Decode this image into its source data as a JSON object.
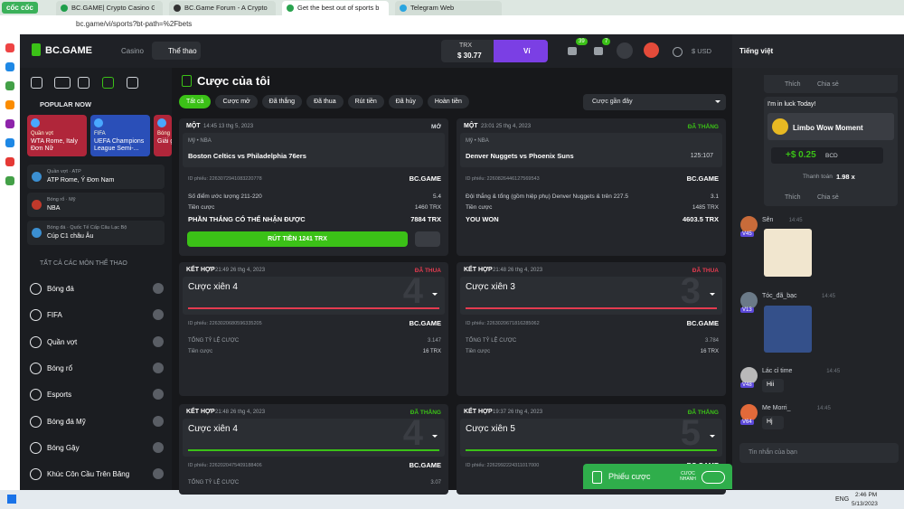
{
  "browser": {
    "brand": "cốc cốc",
    "tabs": [
      "BC.GAME| Crypto Casino Ga",
      "BC.Game Forum - A Cryptoc",
      "Get the best out of sports b",
      "Telegram Web"
    ],
    "url": "bc.game/vi/sports?bt-path=%2Fbets"
  },
  "header": {
    "logo": "BC.GAME",
    "nav": [
      "Casino",
      "Thể thao"
    ],
    "currency": "TRX",
    "balance": "$ 30.77",
    "wallet": "Ví",
    "badges": [
      "39",
      "7"
    ],
    "fiat": "$ USD",
    "language": "Tiếng việt"
  },
  "sidebar": {
    "popular_title": "POPULAR NOW",
    "cards": [
      {
        "sub": "Quần vợt",
        "title": "WTA Rome, Italy Đơn Nữ"
      },
      {
        "sub": "FIFA",
        "title": "UEFA Champions League Semi-..."
      },
      {
        "sub": "Bóng",
        "title": "Giải gia"
      }
    ],
    "leagues": [
      {
        "sub": "Quần vợt · ATP",
        "title": "ATP Rome, Ý Đơn Nam"
      },
      {
        "sub": "Bóng rổ · Mỹ",
        "title": "NBA"
      },
      {
        "sub": "Bóng đá · Quốc Tế Cấp Câu Lạc Bộ",
        "title": "Cúp C1 châu Âu"
      }
    ],
    "all_title": "TẤT CẢ CÁC MÔN THỂ THAO",
    "sports": [
      "Bóng đá",
      "FIFA",
      "Quần vợt",
      "Bóng rổ",
      "Esports",
      "Bóng đá Mỹ",
      "Bóng Gậy",
      "Khúc Côn Cầu Trên Băng"
    ]
  },
  "main": {
    "title": "Cược của tôi",
    "filters": [
      "Tất cả",
      "Cược mở",
      "Đã thắng",
      "Đã thua",
      "Rút tiền",
      "Đã hủy",
      "Hoàn tiền"
    ],
    "sort": "Cược gần đây",
    "bets": [
      {
        "type": "MỘT",
        "time": "14:45 13 thg 5, 2023",
        "status": "MỞ",
        "color": "#d7dbe0",
        "league": "Mỹ • NBA",
        "match": "Boston Celtics vs Philadelphia 76ers",
        "id": "ID phiếu: 2263072941083220778",
        "brand": "BC.GAME",
        "selection": "Số điểm ước lượng 211-220",
        "odds": "5.4",
        "stake_label": "Tiền cược",
        "stake": "1460 TRX",
        "result_label": "PHẦN THẮNG CÓ THỂ NHẬN ĐƯỢC",
        "result": "7884 TRX",
        "cashout": "RÚT TIỀN 1241 TRX"
      },
      {
        "type": "MỘT",
        "time": "23:01 25 thg 4, 2023",
        "status": "ĐÃ THẮNG",
        "color": "#3bc117",
        "league": "Mỹ • NBA",
        "match": "Denver Nuggets vs Phoenix Suns",
        "score": "125:107",
        "id": "ID phiếu: 2260826446127569543",
        "brand": "BC.GAME",
        "selection": "Đội thắng & tổng (gồm hiệp phụ) Denver Nuggets & trên 227.5",
        "odds": "3.1",
        "stake_label": "Tiền cược",
        "stake": "1485 TRX",
        "result_label": "YOU WON",
        "result": "4603.5 TRX"
      },
      {
        "type": "KẾT HỢP",
        "time": "21:49 26 thg 4, 2023",
        "status": "ĐÃ THUA",
        "color": "#e43b4f",
        "name": "Cược xiên 4",
        "count": "4",
        "id": "ID phiếu: 2263020680596335205",
        "brand": "BC.GAME",
        "total_label": "TỔNG TỶ LỆ CƯỢC",
        "total": "3.147",
        "stake_label": "Tiền cược",
        "stake": "16 TRX"
      },
      {
        "type": "KẾT HỢP",
        "time": "21:48 26 thg 4, 2023",
        "status": "ĐÃ THUA",
        "color": "#e43b4f",
        "name": "Cược xiên 3",
        "count": "3",
        "id": "ID phiếu: 2263020671816285062",
        "brand": "BC.GAME",
        "total_label": "TỔNG TỶ LỆ CƯỢC",
        "total": "3.784",
        "stake_label": "Tiền cược",
        "stake": "16 TRX"
      },
      {
        "type": "KẾT HỢP",
        "time": "21:48 26 thg 4, 2023",
        "status": "ĐÃ THẮNG",
        "color": "#3bc117",
        "name": "Cược xiên 4",
        "count": "4",
        "id": "ID phiếu: 2262020475409188406",
        "brand": "BC.GAME",
        "total_label": "TỔNG TỶ LỆ CƯỢC",
        "total": "3.07"
      },
      {
        "type": "KẾT HỢP",
        "time": "19:37 26 thg 4, 2023",
        "status": "ĐÃ THẮNG",
        "color": "#3bc117",
        "name": "Cược xiên 5",
        "count": "5",
        "id": "ID phiếu: 2262992224311017000",
        "brand": "BC.GAME"
      }
    ],
    "betslip": "Phiếu cược",
    "quick": "CƯỢC NHANH"
  },
  "chat": {
    "like": "Thích",
    "share": "Chia sẻ",
    "card_title": "I'm in luck Today!",
    "game": "Limbo Wow Moment",
    "win": "+$ 0.25",
    "coin": "BCD",
    "payout_label": "Thanh toán",
    "payout": "1.98 x",
    "messages": [
      {
        "user": "Sên",
        "time": "14:45",
        "level": "V45"
      },
      {
        "user": "Tóc_đã_bạc",
        "time": "14:45",
        "level": "V13"
      },
      {
        "user": "Lác cỉ time",
        "time": "14:45",
        "level": "V48",
        "text": "Hii"
      },
      {
        "user": "Me Morri_",
        "time": "14:45",
        "level": "V64",
        "text": "Hj"
      }
    ],
    "input": "Tin nhắn của bạn"
  },
  "taskbar": {
    "lang": "ENG",
    "time": "2:46 PM",
    "date": "5/13/2023"
  }
}
